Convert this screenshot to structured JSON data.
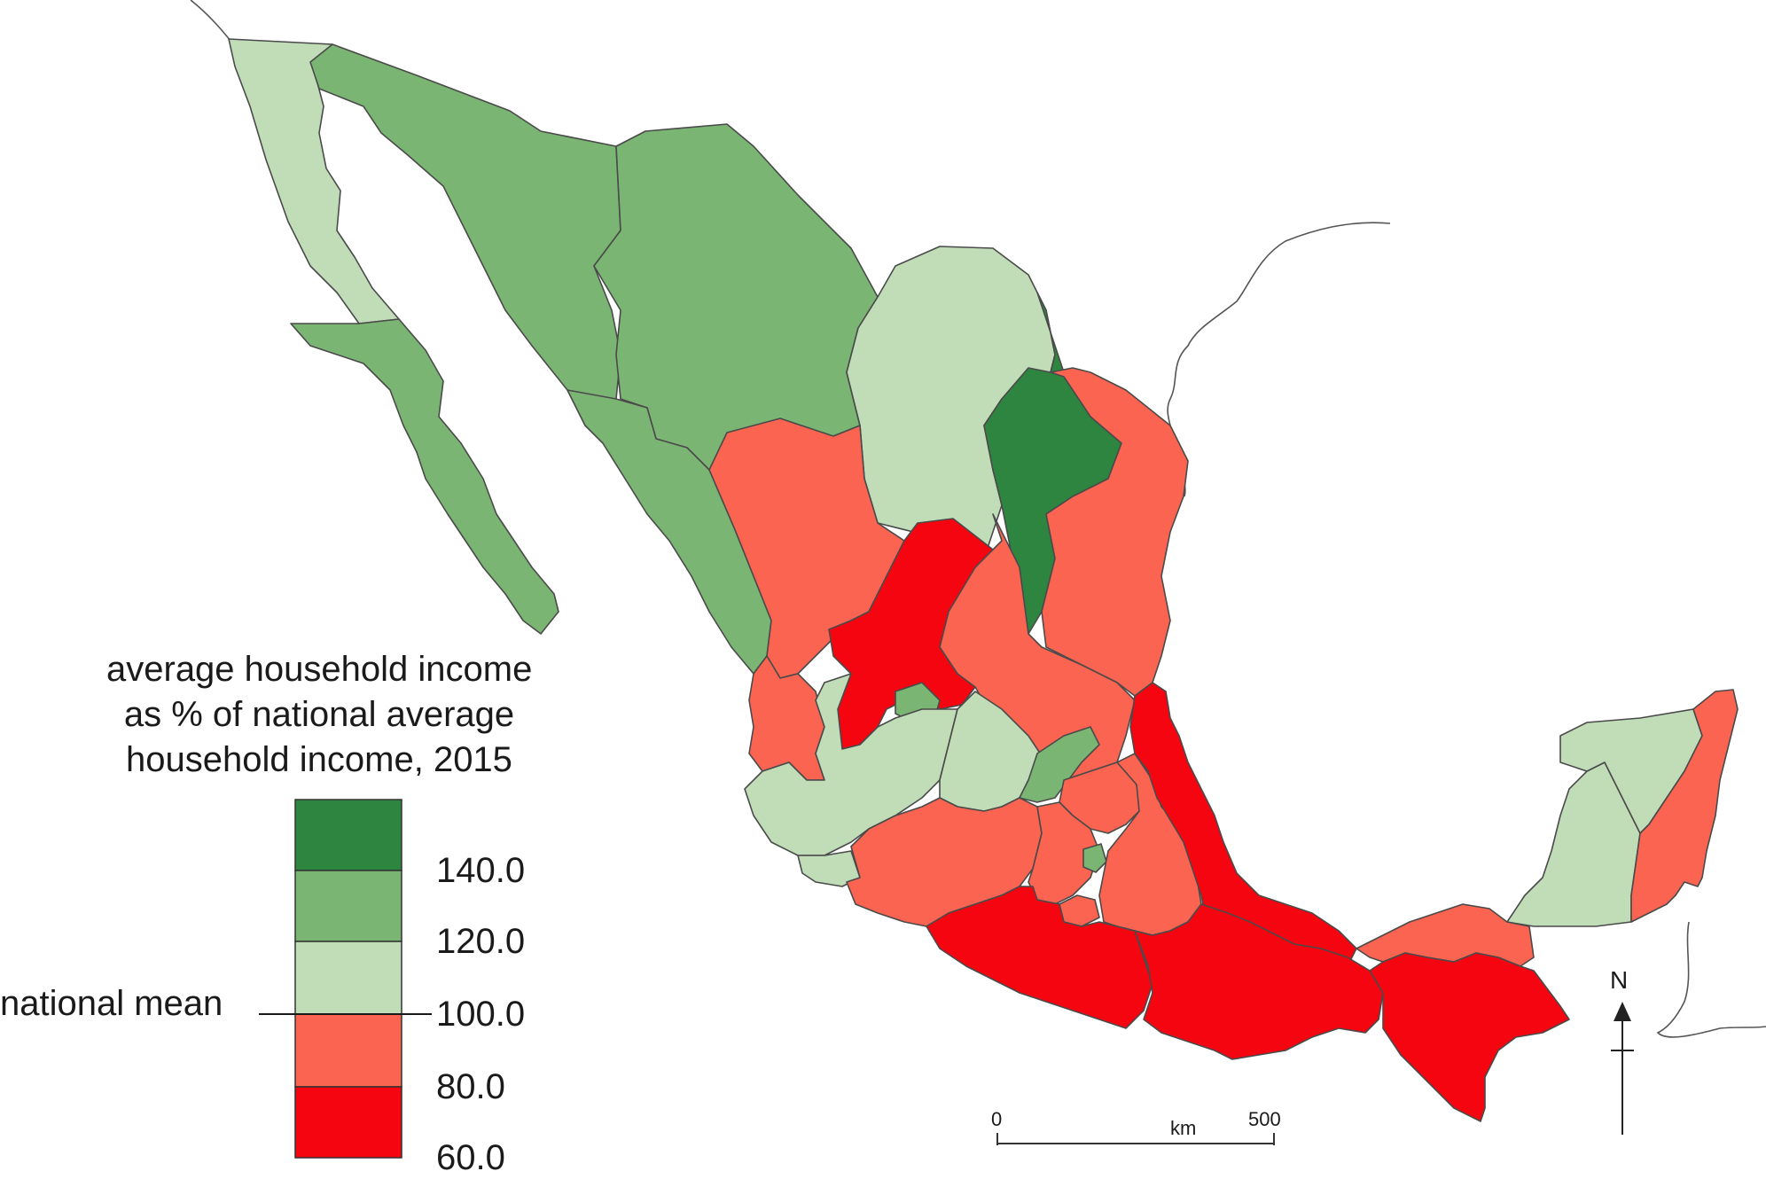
{
  "legend": {
    "title_lines": [
      "average household income",
      "as % of national average",
      "household income, 2015"
    ],
    "classes": [
      {
        "range": "> 140.0",
        "color": "#2e8540"
      },
      {
        "range": "120.0–140.0",
        "color": "#7bb573"
      },
      {
        "range": "100.0–120.0",
        "color": "#c0ddb8"
      },
      {
        "range": "80.0–100.0",
        "color": "#fa6450"
      },
      {
        "range": "60.0–80.0",
        "color": "#f4050f"
      }
    ],
    "tick_labels": [
      "140.0",
      "120.0",
      "100.0",
      "80.0",
      "60.0"
    ],
    "mean_label": "national mean"
  },
  "scale_bar": {
    "start": "0",
    "end": "500",
    "unit": "km"
  },
  "north_arrow": {
    "label": "N"
  },
  "colors": {
    "dark_green": "#2e8540",
    "mid_green": "#7bb573",
    "light_green": "#c0ddb8",
    "light_red": "#fa6450",
    "red": "#f4050f"
  }
}
